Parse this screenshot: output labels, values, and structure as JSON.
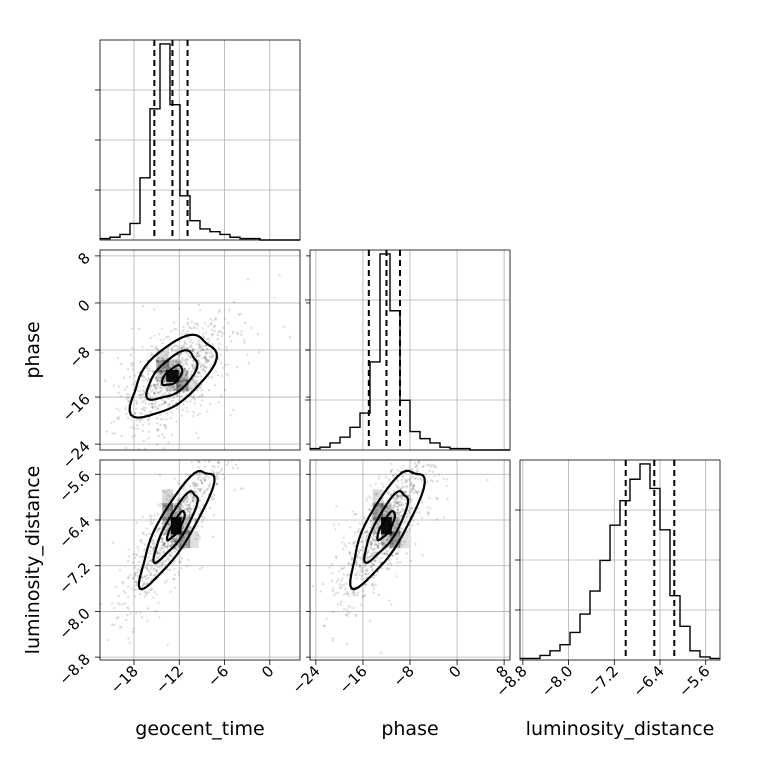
{
  "chart_data": {
    "type": "corner",
    "parameters": [
      "geocent_time",
      "phase",
      "luminosity_distance"
    ],
    "axis_labels": {
      "geocent_time": "geocent_time",
      "phase": "phase",
      "luminosity_distance": "luminosity_distance"
    },
    "ranges": {
      "geocent_time": [
        -22.5,
        4
      ],
      "phase": [
        -25,
        9
      ],
      "luminosity_distance": [
        -8.85,
        -5.35
      ]
    },
    "ticks": {
      "geocent_time": [
        -18,
        -12,
        -6,
        0
      ],
      "phase": [
        -24,
        -16,
        -8,
        0,
        8
      ],
      "luminosity_distance": [
        -8.8,
        -8.0,
        -7.2,
        -6.4,
        -5.6
      ]
    },
    "tick_labels": {
      "geocent_time": [
        "−18",
        "−12",
        "−6",
        "0"
      ],
      "phase": [
        "−24",
        "−16",
        "−8",
        "0",
        "8"
      ],
      "luminosity_distance": [
        "−8.8",
        "−8.0",
        "−7.2",
        "−6.4",
        "−5.6"
      ]
    },
    "grid": true,
    "histograms": [
      {
        "parameter": "geocent_time",
        "bins": 20,
        "counts": [
          1,
          2,
          4,
          12,
          45,
          95,
          142,
          98,
          32,
          14,
          8,
          6,
          4,
          2,
          1,
          1,
          0,
          0,
          0,
          0
        ],
        "quantiles": [
          -15.3,
          -12.9,
          -10.9
        ]
      },
      {
        "parameter": "phase",
        "bins": 20,
        "counts": [
          1,
          2,
          5,
          9,
          16,
          26,
          62,
          138,
          98,
          35,
          13,
          8,
          5,
          2,
          1,
          1,
          0,
          0,
          0,
          0
        ],
        "quantiles": [
          -15.0,
          -12.0,
          -9.7
        ]
      },
      {
        "parameter": "luminosity_distance",
        "bins": 20,
        "counts": [
          1,
          1,
          3,
          6,
          10,
          18,
          30,
          45,
          65,
          88,
          104,
          118,
          128,
          112,
          85,
          42,
          22,
          6,
          2,
          1
        ],
        "quantiles": [
          -7.0,
          -6.5,
          -6.15
        ]
      }
    ],
    "pairs": [
      {
        "x": "geocent_time",
        "y": "phase",
        "center": [
          -12.9,
          -12.4
        ],
        "sigma": [
          3.0,
          3.7
        ],
        "correlation": 0.6,
        "contour_levels_sigma": [
          0.45,
          1.1,
          1.85
        ]
      },
      {
        "x": "geocent_time",
        "y": "luminosity_distance",
        "center": [
          -12.4,
          -6.5
        ],
        "sigma": [
          2.6,
          0.55
        ],
        "correlation": 0.85,
        "contour_levels_sigma": [
          0.45,
          1.1,
          1.85
        ]
      },
      {
        "x": "phase",
        "y": "luminosity_distance",
        "center": [
          -12.0,
          -6.5
        ],
        "sigma": [
          3.3,
          0.55
        ],
        "correlation": 0.8,
        "contour_levels_sigma": [
          0.45,
          1.1,
          1.85
        ]
      }
    ],
    "scatter_point_count": 900,
    "colors": {
      "ink": "#000000",
      "grid": "#b0b0b0",
      "density_fill": "#808080"
    }
  }
}
